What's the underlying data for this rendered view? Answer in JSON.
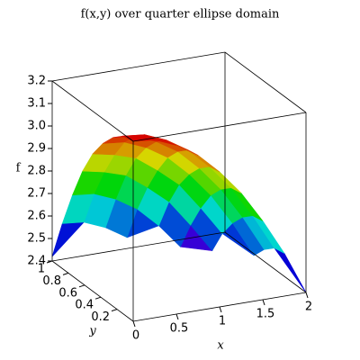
{
  "chart_data": {
    "type": "surface",
    "title": "f(x,y) over quarter ellipse domain",
    "x_label": "x",
    "y_label": "y",
    "z_label": "f",
    "x": [
      0,
      0.25,
      0.5,
      0.75,
      1,
      1.25,
      1.5,
      1.75,
      2
    ],
    "y": [
      0,
      0.125,
      0.25,
      0.375,
      0.5,
      0.625,
      0.75,
      0.875,
      1
    ],
    "z": [
      [
        3.2,
        3.19,
        3.15,
        3.09,
        3.0,
        2.89,
        2.75,
        2.59,
        2.4
      ],
      [
        3.19,
        3.18,
        3.14,
        3.08,
        2.99,
        2.88,
        2.74,
        2.58,
        null
      ],
      [
        3.15,
        3.14,
        3.1,
        3.04,
        2.95,
        2.84,
        2.7,
        2.54,
        null
      ],
      [
        3.09,
        3.08,
        3.04,
        2.98,
        2.89,
        2.78,
        2.64,
        2.48,
        null
      ],
      [
        3.01,
        2.99,
        2.96,
        2.89,
        2.81,
        2.69,
        2.56,
        null,
        null
      ],
      [
        2.9,
        2.88,
        2.85,
        2.78,
        2.7,
        2.58,
        2.45,
        null,
        null
      ],
      [
        2.76,
        2.75,
        2.71,
        2.65,
        2.56,
        2.45,
        null,
        null,
        null
      ],
      [
        2.6,
        2.59,
        2.55,
        2.49,
        null,
        null,
        null,
        null,
        null
      ],
      [
        2.42,
        null,
        null,
        null,
        null,
        null,
        null,
        null,
        null
      ]
    ],
    "xlim": [
      0,
      2
    ],
    "ylim": [
      0,
      1
    ],
    "zlim": [
      2.4,
      3.2
    ],
    "xticks": [
      0,
      0.5,
      1,
      1.5,
      2
    ],
    "yticks": [
      0.2,
      0.4,
      0.6,
      0.8,
      1
    ],
    "zticks": [
      2.4,
      2.5,
      2.6,
      2.7,
      2.8,
      2.9,
      {
        "value": 3,
        "label": "3.0"
      },
      3.1,
      3.2
    ]
  }
}
